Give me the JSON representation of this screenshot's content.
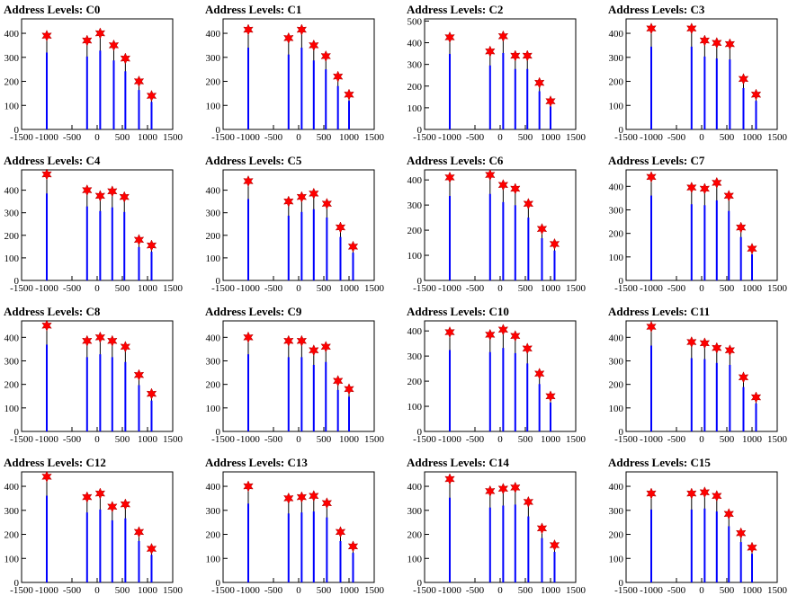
{
  "chart_data": [
    {
      "type": "bar",
      "title": "Address Levels: C0",
      "xlim": [
        -1500,
        1500
      ],
      "ylim": [
        0,
        460
      ],
      "yticks": [
        0,
        100,
        200,
        300,
        400
      ],
      "xticks": [
        -1500,
        -1000,
        -500,
        0,
        500,
        1000,
        1500
      ],
      "x": [
        -1000,
        -200,
        60,
        330,
        560,
        830,
        1080
      ],
      "values": [
        390,
        370,
        400,
        350,
        295,
        200,
        140
      ]
    },
    {
      "type": "bar",
      "title": "Address Levels: C1",
      "xlim": [
        -1500,
        1500
      ],
      "ylim": [
        0,
        460
      ],
      "yticks": [
        0,
        100,
        200,
        300,
        400
      ],
      "xticks": [
        -1500,
        -1000,
        -500,
        0,
        500,
        1000,
        1500
      ],
      "x": [
        -1000,
        -200,
        60,
        300,
        540,
        780,
        1000
      ],
      "values": [
        415,
        380,
        415,
        350,
        305,
        220,
        145
      ]
    },
    {
      "type": "bar",
      "title": "Address Levels: C2",
      "xlim": [
        -1500,
        1500
      ],
      "ylim": [
        0,
        510
      ],
      "yticks": [
        0,
        100,
        200,
        300,
        400,
        500
      ],
      "xticks": [
        -1500,
        -1000,
        -500,
        0,
        500,
        1000,
        1500
      ],
      "x": [
        -1000,
        -200,
        60,
        300,
        540,
        780,
        1000
      ],
      "values": [
        425,
        360,
        430,
        340,
        340,
        215,
        130
      ]
    },
    {
      "type": "bar",
      "title": "Address Levels: C3",
      "xlim": [
        -1500,
        1500
      ],
      "ylim": [
        0,
        460
      ],
      "yticks": [
        0,
        100,
        200,
        300,
        400
      ],
      "xticks": [
        -1500,
        -1000,
        -500,
        0,
        500,
        1000,
        1500
      ],
      "x": [
        -1000,
        -200,
        60,
        300,
        560,
        830,
        1080
      ],
      "values": [
        420,
        420,
        370,
        360,
        355,
        210,
        145
      ]
    },
    {
      "type": "bar",
      "title": "Address Levels: C4",
      "xlim": [
        -1500,
        1500
      ],
      "ylim": [
        0,
        490
      ],
      "yticks": [
        0,
        100,
        200,
        300,
        400
      ],
      "xticks": [
        -1500,
        -1000,
        -500,
        0,
        500,
        1000,
        1500
      ],
      "x": [
        -1000,
        -200,
        60,
        300,
        540,
        830,
        1080
      ],
      "values": [
        470,
        400,
        375,
        395,
        370,
        180,
        155
      ]
    },
    {
      "type": "bar",
      "title": "Address Levels: C5",
      "xlim": [
        -1500,
        1500
      ],
      "ylim": [
        0,
        490
      ],
      "yticks": [
        0,
        100,
        200,
        300,
        400
      ],
      "xticks": [
        -1500,
        -1000,
        -500,
        0,
        500,
        1000,
        1500
      ],
      "x": [
        -1000,
        -200,
        60,
        300,
        560,
        830,
        1080
      ],
      "values": [
        440,
        350,
        370,
        385,
        340,
        235,
        150
      ]
    },
    {
      "type": "bar",
      "title": "Address Levels: C6",
      "xlim": [
        -1500,
        1500
      ],
      "ylim": [
        0,
        440
      ],
      "yticks": [
        0,
        100,
        200,
        300,
        400
      ],
      "xticks": [
        -1500,
        -1000,
        -500,
        0,
        500,
        1000,
        1500
      ],
      "x": [
        -1000,
        -200,
        60,
        300,
        560,
        830,
        1080
      ],
      "values": [
        410,
        420,
        380,
        365,
        305,
        205,
        145
      ]
    },
    {
      "type": "bar",
      "title": "Address Levels: C7",
      "xlim": [
        -1500,
        1500
      ],
      "ylim": [
        0,
        470
      ],
      "yticks": [
        0,
        100,
        200,
        300,
        400
      ],
      "xticks": [
        -1500,
        -1000,
        -500,
        0,
        500,
        1000,
        1500
      ],
      "x": [
        -1000,
        -200,
        60,
        300,
        540,
        780,
        1000
      ],
      "values": [
        440,
        395,
        390,
        415,
        360,
        225,
        135
      ]
    },
    {
      "type": "bar",
      "title": "Address Levels: C8",
      "xlim": [
        -1500,
        1500
      ],
      "ylim": [
        0,
        470
      ],
      "yticks": [
        0,
        100,
        200,
        300,
        400
      ],
      "xticks": [
        -1500,
        -1000,
        -500,
        0,
        500,
        1000,
        1500
      ],
      "x": [
        -1000,
        -200,
        60,
        300,
        560,
        830,
        1080
      ],
      "values": [
        450,
        385,
        400,
        385,
        360,
        240,
        160
      ]
    },
    {
      "type": "bar",
      "title": "Address Levels: C9",
      "xlim": [
        -1500,
        1500
      ],
      "ylim": [
        0,
        470
      ],
      "yticks": [
        0,
        100,
        200,
        300,
        400
      ],
      "xticks": [
        -1500,
        -1000,
        -500,
        0,
        500,
        1000,
        1500
      ],
      "x": [
        -1000,
        -200,
        60,
        300,
        540,
        780,
        1000
      ],
      "values": [
        400,
        385,
        385,
        345,
        360,
        215,
        180
      ]
    },
    {
      "type": "bar",
      "title": "Address Levels: C10",
      "xlim": [
        -1500,
        1500
      ],
      "ylim": [
        0,
        440
      ],
      "yticks": [
        0,
        100,
        200,
        300,
        400
      ],
      "xticks": [
        -1500,
        -1000,
        -500,
        0,
        500,
        1000,
        1500
      ],
      "x": [
        -1000,
        -200,
        60,
        300,
        540,
        780,
        1000
      ],
      "values": [
        395,
        385,
        405,
        380,
        330,
        230,
        140
      ]
    },
    {
      "type": "bar",
      "title": "Address Levels: C11",
      "xlim": [
        -1500,
        1500
      ],
      "ylim": [
        0,
        470
      ],
      "yticks": [
        0,
        100,
        200,
        300,
        400
      ],
      "xticks": [
        -1500,
        -1000,
        -500,
        0,
        500,
        1000,
        1500
      ],
      "x": [
        -1000,
        -200,
        60,
        300,
        560,
        830,
        1080
      ],
      "values": [
        445,
        380,
        375,
        355,
        345,
        230,
        145
      ]
    },
    {
      "type": "bar",
      "title": "Address Levels: C12",
      "xlim": [
        -1500,
        1500
      ],
      "ylim": [
        0,
        460
      ],
      "yticks": [
        0,
        100,
        200,
        300,
        400
      ],
      "xticks": [
        -1500,
        -1000,
        -500,
        0,
        500,
        1000,
        1500
      ],
      "x": [
        -1000,
        -200,
        60,
        300,
        560,
        830,
        1080
      ],
      "values": [
        440,
        355,
        370,
        315,
        325,
        210,
        140
      ]
    },
    {
      "type": "bar",
      "title": "Address Levels: C13",
      "xlim": [
        -1500,
        1500
      ],
      "ylim": [
        0,
        460
      ],
      "yticks": [
        0,
        100,
        200,
        300,
        400
      ],
      "xticks": [
        -1500,
        -1000,
        -500,
        0,
        500,
        1000,
        1500
      ],
      "x": [
        -1000,
        -200,
        60,
        300,
        560,
        830,
        1080
      ],
      "values": [
        400,
        350,
        355,
        360,
        330,
        210,
        150
      ]
    },
    {
      "type": "bar",
      "title": "Address Levels: C14",
      "xlim": [
        -1500,
        1500
      ],
      "ylim": [
        0,
        460
      ],
      "yticks": [
        0,
        100,
        200,
        300,
        400
      ],
      "xticks": [
        -1500,
        -1000,
        -500,
        0,
        500,
        1000,
        1500
      ],
      "x": [
        -1000,
        -200,
        60,
        300,
        560,
        830,
        1080
      ],
      "values": [
        430,
        380,
        390,
        395,
        335,
        225,
        155
      ]
    },
    {
      "type": "bar",
      "title": "Address Levels: C15",
      "xlim": [
        -1500,
        1500
      ],
      "ylim": [
        0,
        460
      ],
      "yticks": [
        0,
        100,
        200,
        300,
        400
      ],
      "xticks": [
        -1500,
        -1000,
        -500,
        0,
        500,
        1000,
        1500
      ],
      "x": [
        -1000,
        -200,
        60,
        300,
        540,
        780,
        1000
      ],
      "values": [
        370,
        370,
        375,
        360,
        285,
        205,
        145
      ]
    }
  ],
  "colors": {
    "bar": "#0000ff",
    "marker": "#ff0000",
    "marker_stroke": "#aa0000",
    "axis": "#000000"
  }
}
